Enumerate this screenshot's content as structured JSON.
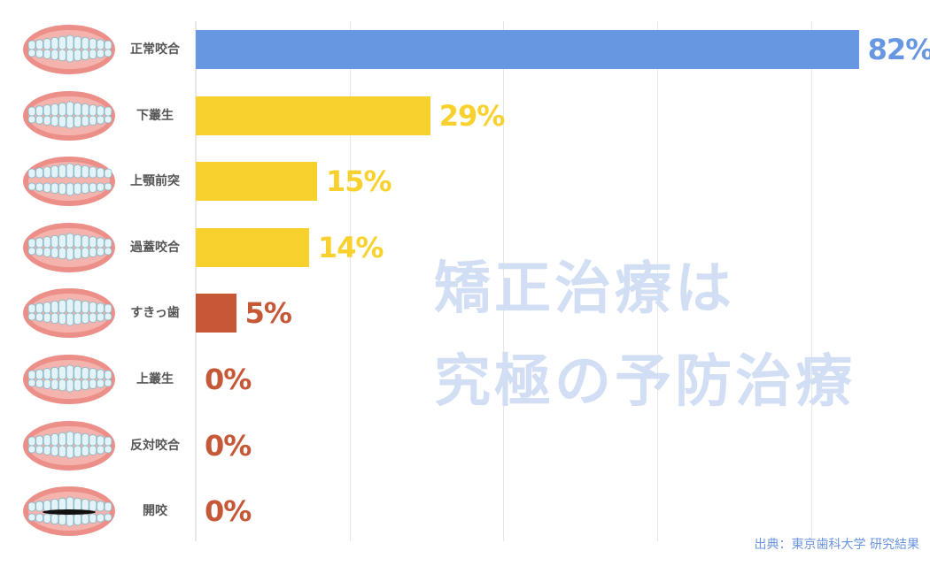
{
  "chart_data": {
    "type": "bar",
    "orientation": "horizontal",
    "title": "",
    "xlabel": "",
    "ylabel": "",
    "categories": [
      "正常咬合",
      "下叢生",
      "上顎前突",
      "過蓋咬合",
      "すきっ歯",
      "上叢生",
      "反対咬合",
      "開咬"
    ],
    "values": [
      82,
      29,
      15,
      14,
      5,
      0,
      0,
      0
    ],
    "value_labels": [
      "82%",
      "29%",
      "15%",
      "14%",
      "5%",
      "0%",
      "0%",
      "0%"
    ],
    "unit": "%",
    "xlim": [
      0,
      90
    ],
    "grid": true,
    "legend": null,
    "bar_colors": [
      "#6897e2",
      "#f9d12e",
      "#f9d12e",
      "#f9d12e",
      "#c65737",
      "#c65737",
      "#c65737",
      "#c65737"
    ],
    "annotations": [
      "矯正治療は",
      "究極の予防治療",
      "出典：東京歯科大学 研究結果"
    ]
  },
  "rows": [
    {
      "label": "正常咬合",
      "value": 82,
      "value_label": "82%",
      "color": "#6897e2",
      "icon": "normal-bite-teeth"
    },
    {
      "label": "下叢生",
      "value": 29,
      "value_label": "29%",
      "color": "#f9d12e",
      "icon": "lower-crowding-teeth"
    },
    {
      "label": "上顎前突",
      "value": 15,
      "value_label": "15%",
      "color": "#f9d12e",
      "icon": "overjet-teeth"
    },
    {
      "label": "過蓋咬合",
      "value": 14,
      "value_label": "14%",
      "color": "#f9d12e",
      "icon": "deep-bite-teeth"
    },
    {
      "label": "すきっ歯",
      "value": 5,
      "value_label": "5%",
      "color": "#c65737",
      "icon": "gap-teeth"
    },
    {
      "label": "上叢生",
      "value": 0,
      "value_label": "0%",
      "color": "#c65737",
      "icon": "upper-crowding-teeth"
    },
    {
      "label": "反対咬合",
      "value": 0,
      "value_label": "0%",
      "color": "#c65737",
      "icon": "underbite-teeth"
    },
    {
      "label": "開咬",
      "value": 0,
      "value_label": "0%",
      "color": "#c65737",
      "icon": "open-bite-teeth"
    }
  ],
  "watermark": {
    "line1": "矯正治療は",
    "line2": "究極の予防治療",
    "color": "#d2def4"
  },
  "source": "出典：東京歯科大学 研究結果"
}
